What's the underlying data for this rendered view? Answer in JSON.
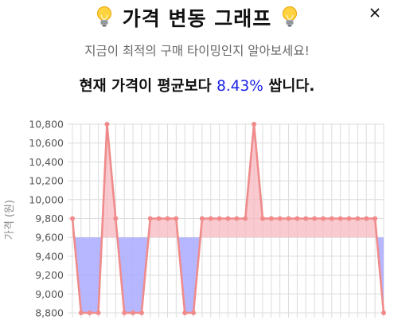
{
  "header": {
    "title": "가격 변동 그래프",
    "icon": "lightbulb-icon",
    "close_icon": "close-icon"
  },
  "subtitle": "지금이 최적의 구매 타이밍인지 알아보세요!",
  "summary": {
    "prefix": "현재 가격이 평균보다 ",
    "percent": "8.43%",
    "suffix": " 쌉니다."
  },
  "colors": {
    "line": "#f08b8b",
    "above_fill": "#f7b8c0",
    "below_fill": "#aaaaff",
    "highlight": "#1a22e6"
  },
  "chart_data": {
    "type": "line",
    "ylabel": "가격 (원)",
    "ylim": [
      8800,
      10800
    ],
    "yticks": [
      8800,
      9000,
      9200,
      9400,
      9600,
      9800,
      10000,
      10200,
      10400,
      10600,
      10800
    ],
    "ytick_labels": [
      "8,800",
      "9,000",
      "9,200",
      "9,400",
      "9,600",
      "9,800",
      "10,000",
      "10,200",
      "10,400",
      "10,600",
      "10,800"
    ],
    "baseline": 9600,
    "grid": true,
    "values": [
      9800,
      8800,
      8800,
      8800,
      10800,
      9800,
      8800,
      8800,
      8800,
      9800,
      9800,
      9800,
      9800,
      8800,
      8800,
      9800,
      9800,
      9800,
      9800,
      9800,
      9800,
      10800,
      9800,
      9800,
      9800,
      9800,
      9800,
      9800,
      9800,
      9800,
      9800,
      9800,
      9800,
      9800,
      9800,
      9800,
      8800
    ]
  }
}
